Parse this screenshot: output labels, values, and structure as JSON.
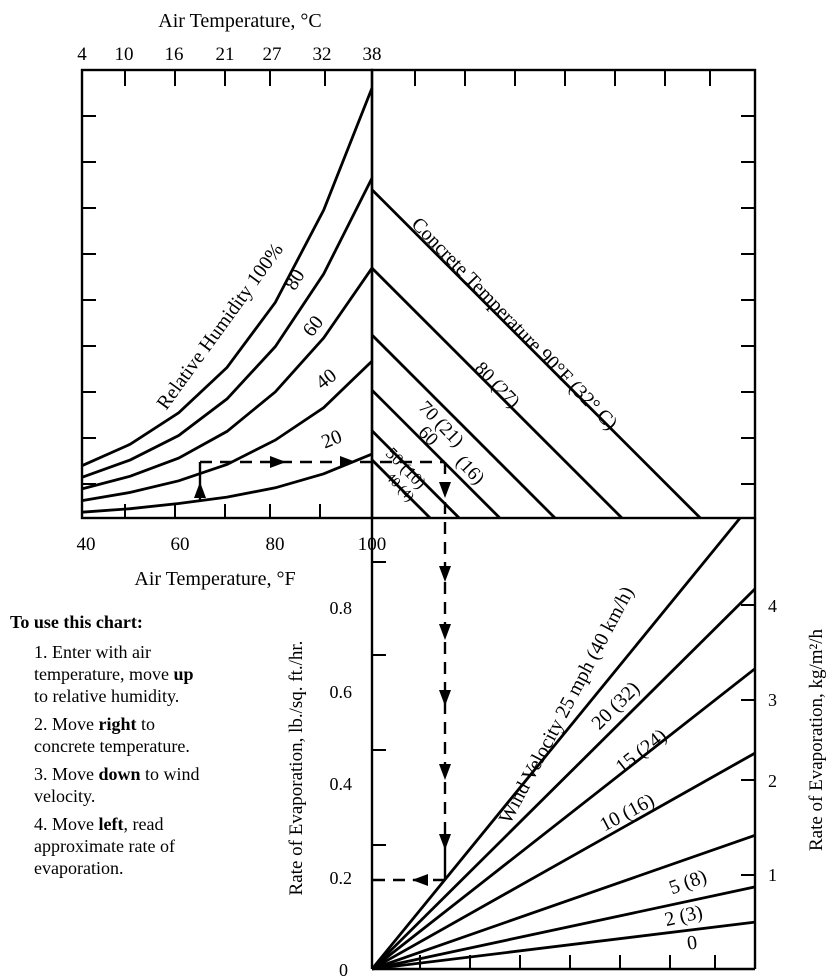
{
  "instructions": {
    "title": "To use this chart:",
    "steps": [
      {
        "num": "1.",
        "pre": "Enter with air temperature, move",
        "bold": "up",
        "post": "to relative humidity."
      },
      {
        "num": "2.",
        "pre": "Move",
        "bold": "right",
        "post": "to concrete temperature."
      },
      {
        "num": "3.",
        "pre": "Move",
        "bold": "down",
        "post": "to wind velocity."
      },
      {
        "num": "4.",
        "pre": "Move",
        "bold": "left",
        "post": ", read approximate rate of evaporation."
      }
    ]
  },
  "chart_data": [
    {
      "type": "line",
      "panel": "relative-humidity",
      "xlabel": "Air Temperature, °F",
      "x2label": "Air Temperature, °C",
      "xticks": [
        "40",
        "60",
        "80",
        "100"
      ],
      "x2ticks": [
        "4",
        "10",
        "16",
        "21",
        "27",
        "32",
        "38"
      ],
      "xlim": [
        40,
        100
      ],
      "series_title": "Relative Humidity 100%",
      "series": [
        {
          "name": "100%",
          "x": [
            40,
            50,
            60,
            70,
            80,
            90,
            100
          ],
          "y": [
            0.9,
            1.27,
            1.81,
            2.59,
            3.71,
            5.3,
            7.4
          ]
        },
        {
          "name": "80",
          "x": [
            40,
            50,
            60,
            70,
            80,
            90,
            100
          ],
          "y": [
            0.7,
            1.0,
            1.42,
            2.05,
            2.95,
            4.2,
            5.85
          ]
        },
        {
          "name": "60",
          "x": [
            40,
            50,
            60,
            70,
            80,
            90,
            100
          ],
          "y": [
            0.5,
            0.72,
            1.03,
            1.49,
            2.17,
            3.1,
            4.3
          ]
        },
        {
          "name": "40",
          "x": [
            40,
            50,
            60,
            70,
            80,
            90,
            100
          ],
          "y": [
            0.3,
            0.44,
            0.64,
            0.92,
            1.34,
            1.9,
            2.7
          ]
        },
        {
          "name": "20",
          "x": [
            40,
            50,
            60,
            70,
            80,
            90,
            100
          ],
          "y": [
            0.1,
            0.16,
            0.25,
            0.36,
            0.52,
            0.76,
            1.1
          ]
        }
      ]
    },
    {
      "type": "line",
      "panel": "concrete-temperature",
      "series_title": "Concrete Temperature 90°F (32° C)",
      "series": [
        {
          "name": "90°F (32° C)",
          "label": "",
          "top_y": 5.65
        },
        {
          "name": "80 (27)",
          "label": "80 (27)",
          "top_y": 4.3
        },
        {
          "name": "70 (21)",
          "label": "70 (21)",
          "top_y": 3.15
        },
        {
          "name": "60 (16)",
          "label": "60",
          "label2": "(16)",
          "top_y": 2.2
        },
        {
          "name": "50 (10)",
          "label": "50 (10)",
          "top_y": 1.5
        },
        {
          "name": "40 (4)",
          "label": "40 (4)",
          "top_y": 1.0
        }
      ]
    },
    {
      "type": "line",
      "panel": "wind-velocity",
      "ylabel": "Rate of Evaporation, lb./sq. ft./hr.",
      "y2label": "Rate of Evaporation, kg/m²/h",
      "yticks": [
        "0",
        "0.2",
        "0.4",
        "0.6",
        "0.8"
      ],
      "y2ticks": [
        "1",
        "2",
        "3",
        "4"
      ],
      "ylim": [
        0,
        0.95
      ],
      "series_title": "Wind Velocity 25 mph (40 km/h)",
      "series": [
        {
          "name": "25 mph (40 km/h)",
          "label": "",
          "slope": 1.0
        },
        {
          "name": "20 (32)",
          "label": "20 (32)",
          "slope": 0.81
        },
        {
          "name": "15 (24)",
          "label": "15 (24)",
          "slope": 0.64
        },
        {
          "name": "10 (16)",
          "label": "10 (16)",
          "slope": 0.46
        },
        {
          "name": "5 (8)",
          "label": "5 (8)",
          "slope": 0.285
        },
        {
          "name": "2 (3)",
          "label": "2 (3)",
          "slope": 0.175
        },
        {
          "name": "0",
          "label": "0",
          "slope": 0.1
        }
      ]
    }
  ]
}
